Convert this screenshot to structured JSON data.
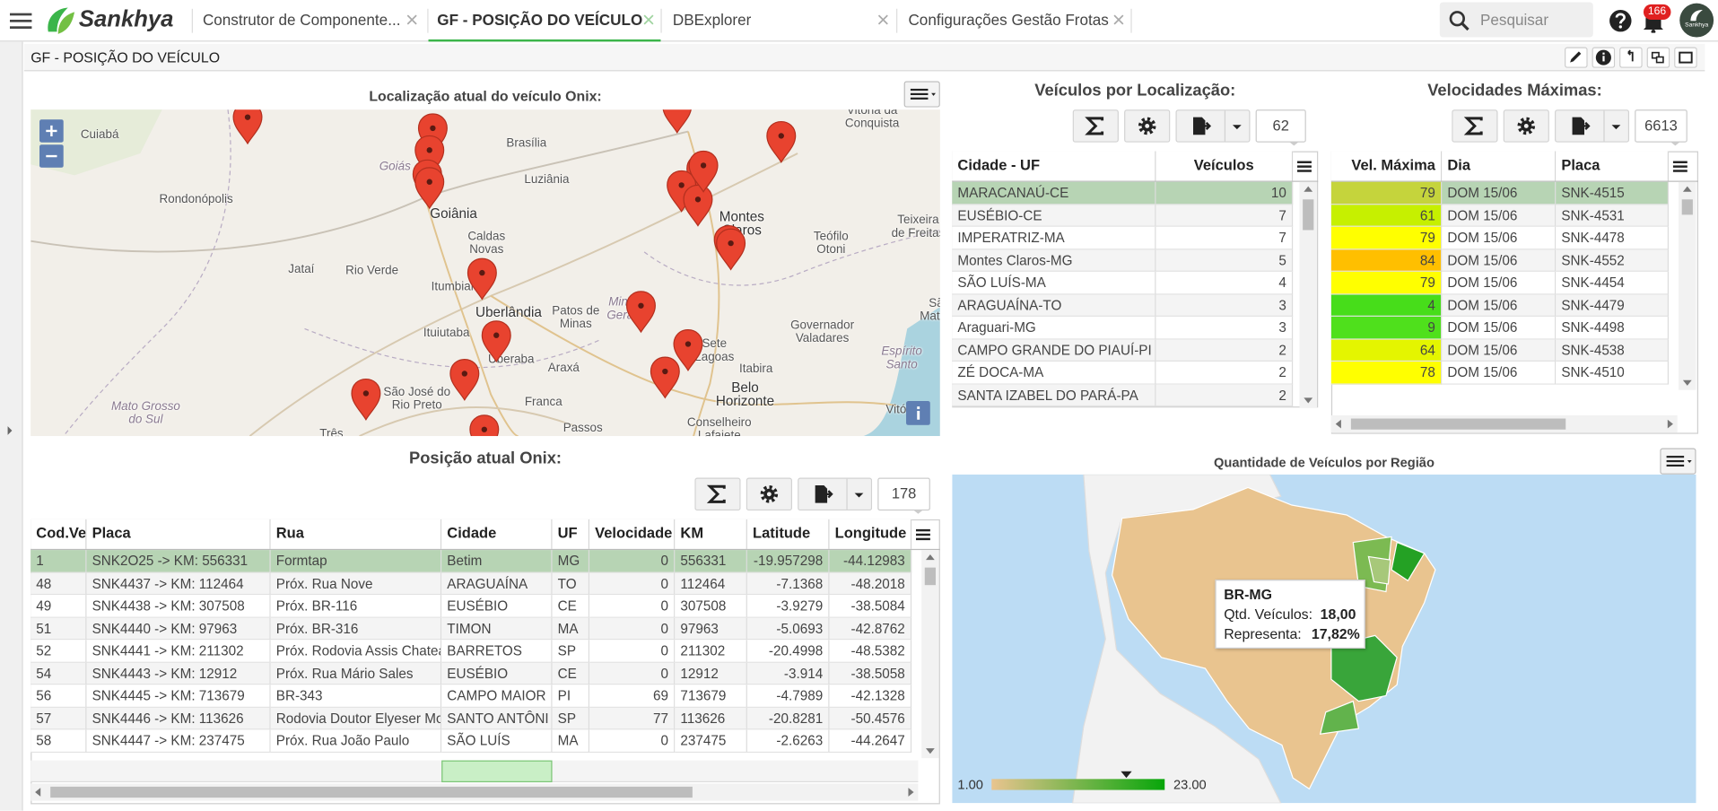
{
  "header": {
    "brand": "Sankhya",
    "tabs": [
      "Construtor de Componente...",
      "GF - POSIÇÃO DO VEÍCULO",
      "DBExplorer",
      "Configurações Gestão Frotas"
    ],
    "search_placeholder": "Pesquisar",
    "notifications": "166",
    "avatar_label": "Sankhya"
  },
  "page_title": "GF - POSIÇÃO DO VEÍCULO",
  "location_map": {
    "title": "Localização atual do veículo Onix:",
    "labels": [
      "Cuiabá",
      "Brasília",
      "Goiás",
      "Luziânia",
      "Rondonópolis",
      "Goiânia",
      "Caldas Novas",
      "Jataí",
      "Rio Verde",
      "Itumbiara",
      "Uberlândia",
      "Patos de Minas",
      "Minas Gerais",
      "Montes Claros",
      "Teófilo Otoni",
      "Teixeira de Freitas",
      "Vitória da Conquista",
      "São Mateus",
      "Governador Valadares",
      "Sete Lagoas",
      "Itabira",
      "Belo Horizonte",
      "Ituiutaba",
      "Uberaba",
      "Araxá",
      "Franca",
      "São José do Rio Preto",
      "Espírito Santo",
      "Vitória",
      "Mato Grosso do Sul",
      "Três Lagoas",
      "Passos",
      "Conselheiro Lafaiete"
    ]
  },
  "vehicles_by_location": {
    "title": "Veículos por Localização:",
    "count": "62",
    "columns": [
      "Cidade - UF",
      "Veículos"
    ],
    "rows": [
      [
        "MARACANAÚ-CE",
        "10"
      ],
      [
        "EUSÉBIO-CE",
        "7"
      ],
      [
        "IMPERATRIZ-MA",
        "7"
      ],
      [
        "Montes Claros-MG",
        "5"
      ],
      [
        "SÃO LUÍS-MA",
        "4"
      ],
      [
        "ARAGUAÍNA-TO",
        "3"
      ],
      [
        "Araguari-MG",
        "3"
      ],
      [
        "CAMPO GRANDE DO PIAUÍ-PI",
        "2"
      ],
      [
        "ZÉ DOCA-MA",
        "2"
      ],
      [
        "SANTA IZABEL DO PARÁ-PA",
        "2"
      ]
    ]
  },
  "max_speeds": {
    "title": "Velocidades Máximas:",
    "count": "6613",
    "columns": [
      "Vel. Máxima",
      "Dia",
      "Placa"
    ],
    "rows": [
      [
        "79",
        "DOM 15/06",
        "SNK-4515"
      ],
      [
        "61",
        "DOM 15/06",
        "SNK-4531"
      ],
      [
        "79",
        "DOM 15/06",
        "SNK-4478"
      ],
      [
        "84",
        "DOM 15/06",
        "SNK-4552"
      ],
      [
        "79",
        "DOM 15/06",
        "SNK-4454"
      ],
      [
        "4",
        "DOM 15/06",
        "SNK-4479"
      ],
      [
        "9",
        "DOM 15/06",
        "SNK-4498"
      ],
      [
        "64",
        "DOM 15/06",
        "SNK-4538"
      ],
      [
        "78",
        "DOM 15/06",
        "SNK-4510"
      ]
    ],
    "speed_colors": [
      "#c5d43c",
      "#c6f000",
      "#ffff00",
      "#ffbf00",
      "#ffff00",
      "#47dd1a",
      "#4fe01c",
      "#e4f500",
      "#ffff00"
    ]
  },
  "current_position": {
    "title": "Posição atual Onix:",
    "count": "178",
    "columns": [
      "Cod.Ve",
      "Placa",
      "Rua",
      "Cidade",
      "UF",
      "Velocidade",
      "KM",
      "Latitude",
      "Longitude"
    ],
    "rows": [
      [
        "1",
        "SNK2O25 -> KM: 556331",
        "Formtap",
        "Betim",
        "MG",
        "0",
        "556331",
        "-19.957298",
        "-44.12983"
      ],
      [
        "48",
        "SNK4437 -> KM: 112464",
        "Próx. Rua Nove",
        "ARAGUAÍNA",
        "TO",
        "0",
        "112464",
        "-7.1368",
        "-48.2018"
      ],
      [
        "49",
        "SNK4438 -> KM: 307508",
        "Próx. BR-116",
        "EUSÉBIO",
        "CE",
        "0",
        "307508",
        "-3.9279",
        "-38.5084"
      ],
      [
        "51",
        "SNK4440 -> KM: 97963",
        "Próx. BR-316",
        "TIMON",
        "MA",
        "0",
        "97963",
        "-5.0693",
        "-42.8762"
      ],
      [
        "52",
        "SNK4441 -> KM: 211302",
        "Próx. Rodovia Assis Chatea",
        "BARRETOS",
        "SP",
        "0",
        "211302",
        "-20.4998",
        "-48.5382"
      ],
      [
        "54",
        "SNK4443 -> KM: 12912",
        "Próx. Rua Mário Sales",
        "EUSÉBIO",
        "CE",
        "0",
        "12912",
        "-3.914",
        "-38.5058"
      ],
      [
        "56",
        "SNK4445 -> KM: 713679",
        "BR-343",
        "CAMPO MAIOR",
        "PI",
        "69",
        "713679",
        "-4.7989",
        "-42.1328"
      ],
      [
        "57",
        "SNK4446 -> KM: 113626",
        "Rodovia Doutor Elyeser Mo",
        "SANTO ANTÔNI",
        "SP",
        "77",
        "113626",
        "-20.8281",
        "-50.4576"
      ],
      [
        "58",
        "SNK4447 -> KM: 237475",
        "Próx. Rua João Paulo",
        "SÃO LUÍS",
        "MA",
        "0",
        "237475",
        "-2.6263",
        "-44.2647"
      ]
    ]
  },
  "region_chart": {
    "title": "Quantidade de Veículos por Região",
    "tooltip": {
      "region": "BR-MG",
      "qty_label": "Qtd. Veículos:",
      "qty_value": "18,00",
      "share_label": "Representa:",
      "share_value": "17,82%"
    },
    "legend_min": "1.00",
    "legend_max": "23.00",
    "legend_colors": [
      "#e9c48f",
      "#07a60a"
    ]
  }
}
